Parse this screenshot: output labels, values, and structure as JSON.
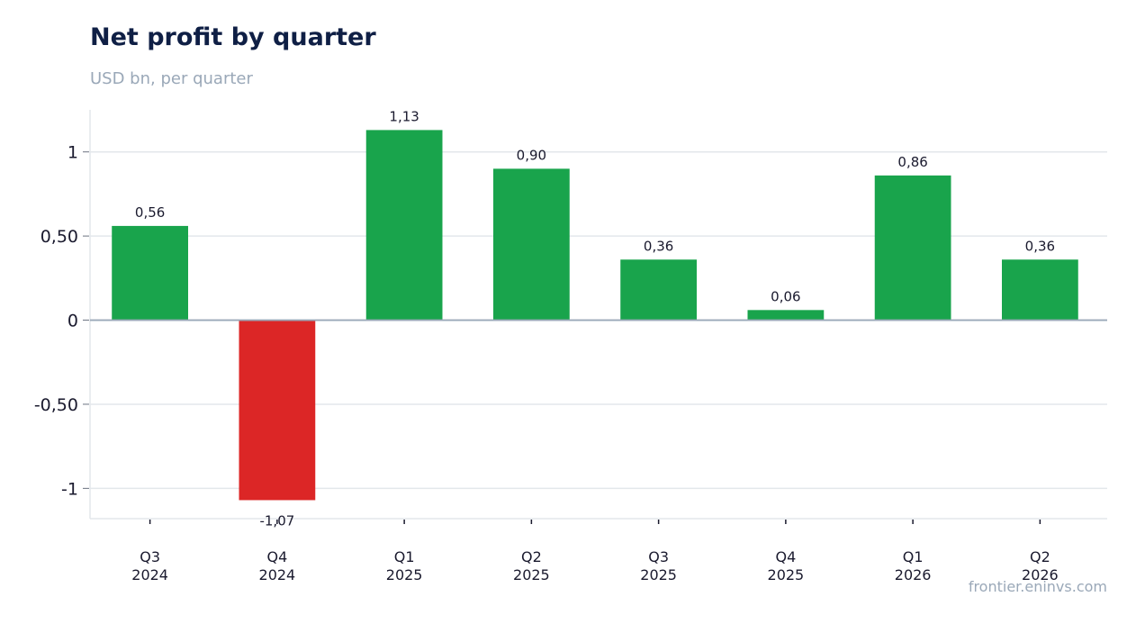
{
  "header": {
    "title": "Net profit by quarter",
    "subtitle": "USD bn, per quarter"
  },
  "footer": {
    "source": "frontier.eninvs.com"
  },
  "colors": {
    "positive": "#19a44c",
    "negative": "#dc2626",
    "grid": "#e3e7eb",
    "zero_line": "#9aa8b8",
    "text": "#1a1a2e"
  },
  "chart_data": {
    "type": "bar",
    "title": "Net profit by quarter",
    "subtitle": "USD bn, per quarter",
    "categories": [
      "Q3\n2024",
      "Q4\n2024",
      "Q1\n2025",
      "Q2\n2025",
      "Q3\n2025",
      "Q4\n2025",
      "Q1\n2026",
      "Q2\n2026"
    ],
    "values": [
      0.56,
      -1.07,
      1.13,
      0.9,
      0.36,
      0.06,
      0.86,
      0.36
    ],
    "data_labels": [
      "0,56",
      "-1,07",
      "1,13",
      "0,90",
      "0,36",
      "0,06",
      "0,86",
      "0,36"
    ],
    "yticks": [
      -1,
      -0.5,
      0,
      0.5,
      1
    ],
    "ytick_labels": [
      "-1",
      "-0,50",
      "0",
      "0,50",
      "1"
    ],
    "ylim": [
      -1.18,
      1.25
    ],
    "grid": true,
    "xlabel": "",
    "ylabel": ""
  }
}
